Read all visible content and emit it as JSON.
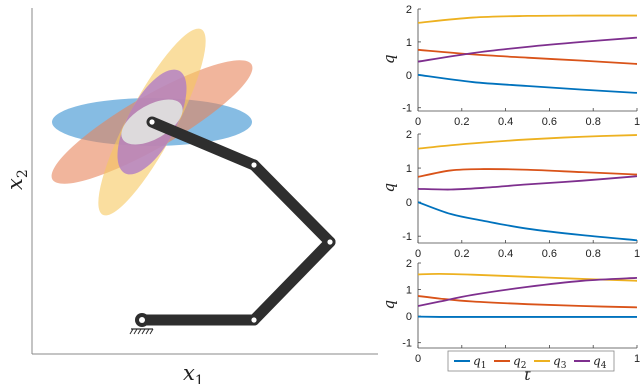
{
  "chart_data": [
    {
      "type": "diagram",
      "xlabel": "x",
      "xlabel_sub": "1",
      "ylabel": "x",
      "ylabel_sub": "2",
      "colors": {
        "ellipse_blue": "#5DA5DA",
        "ellipse_orange": "#E8845A",
        "ellipse_yellow": "#F6C85F",
        "ellipse_purple": "#B07CC6",
        "ellipse_gray": "#dcdcdc",
        "link": "#2e2e2e"
      }
    },
    {
      "type": "line",
      "ylabel": "q",
      "xlim": [
        0,
        1
      ],
      "ylim": [
        -1.1,
        2.0
      ],
      "xticks": [
        "0",
        "0.2",
        "0.4",
        "0.6",
        "0.8",
        "1"
      ],
      "yticks": [
        "-1",
        "0",
        "1",
        "2"
      ],
      "x": [
        0,
        0.25,
        0.5,
        0.75,
        1.0
      ],
      "series": [
        {
          "values": [
            0.0,
            -0.22,
            -0.34,
            -0.45,
            -0.55
          ],
          "color": "#0072BD"
        },
        {
          "values": [
            0.76,
            0.62,
            0.52,
            0.43,
            0.33
          ],
          "color": "#D95319"
        },
        {
          "values": [
            1.58,
            1.74,
            1.79,
            1.8,
            1.8
          ],
          "color": "#EDB120"
        },
        {
          "values": [
            0.4,
            0.66,
            0.85,
            1.0,
            1.13
          ],
          "color": "#7E2F8E"
        }
      ]
    },
    {
      "type": "line",
      "ylabel": "q",
      "xlim": [
        0,
        1
      ],
      "ylim": [
        -1.2,
        2.0
      ],
      "xticks": [
        "0",
        "0.2",
        "0.4",
        "0.6",
        "0.8",
        "1"
      ],
      "yticks": [
        "-1",
        "0",
        "1",
        "2"
      ],
      "x": [
        0,
        0.15,
        0.3,
        0.5,
        0.75,
        1.0
      ],
      "series": [
        {
          "values": [
            0.0,
            -0.35,
            -0.55,
            -0.78,
            -0.97,
            -1.12
          ],
          "color": "#0072BD"
        },
        {
          "values": [
            0.74,
            0.93,
            0.97,
            0.95,
            0.88,
            0.81
          ],
          "color": "#D95319"
        },
        {
          "values": [
            1.57,
            1.67,
            1.75,
            1.84,
            1.92,
            1.97
          ],
          "color": "#EDB120"
        },
        {
          "values": [
            0.39,
            0.37,
            0.42,
            0.52,
            0.63,
            0.76
          ],
          "color": "#7E2F8E"
        }
      ]
    },
    {
      "type": "line",
      "ylabel": "q",
      "xlabel": "t",
      "xlim": [
        0,
        1
      ],
      "ylim": [
        -1.2,
        2.0
      ],
      "xticks": [
        "0",
        "0.2",
        "0.4",
        "0.6",
        "0.8",
        "1"
      ],
      "yticks": [
        "-1",
        "0",
        "1",
        "2"
      ],
      "x": [
        0,
        0.1,
        0.25,
        0.5,
        0.75,
        1.0
      ],
      "series": [
        {
          "name": "q",
          "sub": "1",
          "values": [
            -0.02,
            -0.03,
            -0.03,
            -0.03,
            -0.03,
            -0.03
          ],
          "color": "#0072BD"
        },
        {
          "name": "q",
          "sub": "2",
          "values": [
            0.76,
            0.66,
            0.55,
            0.45,
            0.38,
            0.33
          ],
          "color": "#D95319"
        },
        {
          "name": "q",
          "sub": "3",
          "values": [
            1.57,
            1.59,
            1.56,
            1.48,
            1.4,
            1.33
          ],
          "color": "#EDB120"
        },
        {
          "name": "q",
          "sub": "4",
          "values": [
            0.38,
            0.55,
            0.8,
            1.1,
            1.33,
            1.44
          ],
          "color": "#7E2F8E"
        }
      ],
      "legend": "bottom-center"
    }
  ]
}
